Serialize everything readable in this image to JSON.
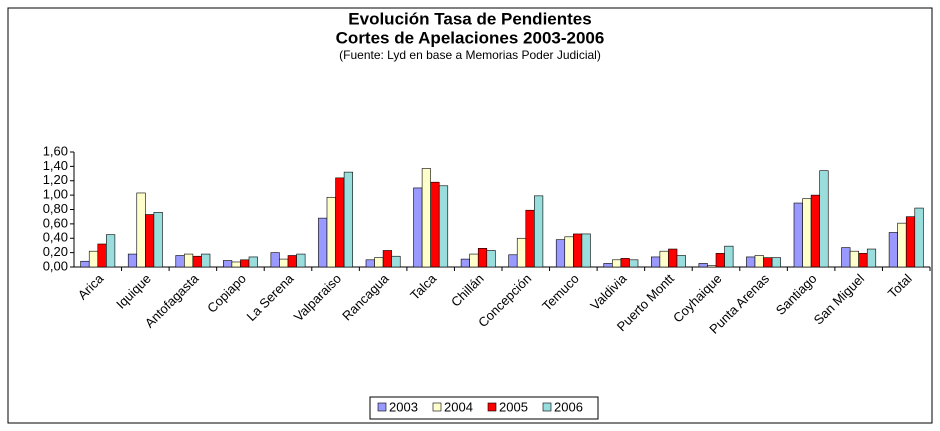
{
  "chart_data": {
    "type": "bar",
    "title": "Evolución Tasa de Pendientes",
    "subtitle": "Cortes de Apelaciones 2003-2006",
    "source": "(Fuente: Lyd en base a Memorias Poder Judicial)",
    "categories": [
      "Arica",
      "Iquique",
      "Antofagasta",
      "Copiapo",
      "La Serena",
      "Valparaiso",
      "Rancagua",
      "Talca",
      "Chillán",
      "Concepción",
      "Temuco",
      "Valdivia",
      "Puerto Montt",
      "Coyhaique",
      "Punta Arenas",
      "Santiago",
      "San Miguel",
      "Total"
    ],
    "series": [
      {
        "name": "2003",
        "color": "#9999ff",
        "values": [
          0.08,
          0.18,
          0.16,
          0.09,
          0.2,
          0.68,
          0.1,
          1.1,
          0.11,
          0.17,
          0.38,
          0.05,
          0.14,
          0.05,
          0.14,
          0.89,
          0.27,
          0.48
        ]
      },
      {
        "name": "2004",
        "color": "#ffffcc",
        "values": [
          0.22,
          1.03,
          0.18,
          0.07,
          0.11,
          0.97,
          0.13,
          1.37,
          0.18,
          0.4,
          0.42,
          0.1,
          0.22,
          0.02,
          0.16,
          0.95,
          0.22,
          0.61
        ]
      },
      {
        "name": "2005",
        "color": "#ff0000",
        "values": [
          0.32,
          0.73,
          0.15,
          0.1,
          0.16,
          1.24,
          0.23,
          1.18,
          0.26,
          0.79,
          0.46,
          0.12,
          0.25,
          0.19,
          0.13,
          1.0,
          0.19,
          0.7
        ]
      },
      {
        "name": "2006",
        "color": "#99dddd",
        "values": [
          0.45,
          0.76,
          0.18,
          0.14,
          0.18,
          1.32,
          0.15,
          1.13,
          0.23,
          0.99,
          0.46,
          0.1,
          0.16,
          0.29,
          0.13,
          1.34,
          0.25,
          0.82
        ]
      }
    ],
    "ylim": [
      0,
      1.6
    ],
    "yticks": [
      {
        "value": 0,
        "label": "0,00"
      },
      {
        "value": 0.2,
        "label": "0,20"
      },
      {
        "value": 0.4,
        "label": "0,40"
      },
      {
        "value": 0.6,
        "label": "0,60"
      },
      {
        "value": 0.8,
        "label": "0,80"
      },
      {
        "value": 1.0,
        "label": "1,00"
      },
      {
        "value": 1.2,
        "label": "1,20"
      },
      {
        "value": 1.4,
        "label": "1,40"
      },
      {
        "value": 1.6,
        "label": "1,60"
      }
    ],
    "legend": "bottom"
  }
}
